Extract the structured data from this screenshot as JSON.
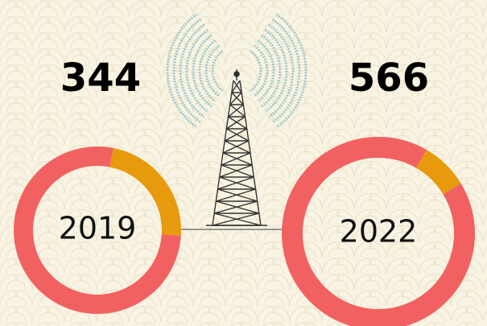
{
  "chart_data": [
    {
      "type": "donut",
      "total": 344,
      "label": "2019",
      "values": [
        23,
        77
      ],
      "colors": [
        "#e69a0c",
        "#f26161"
      ]
    },
    {
      "type": "donut",
      "total": 566,
      "label": "2022",
      "values": [
        8,
        92
      ],
      "colors": [
        "#e69a0c",
        "#f26161"
      ]
    }
  ]
}
